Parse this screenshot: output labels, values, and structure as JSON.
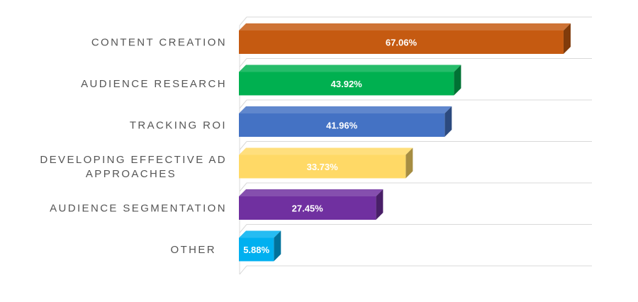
{
  "chart_data": {
    "type": "bar",
    "orientation": "horizontal",
    "three_d": true,
    "categories": [
      "CONTENT CREATION",
      "AUDIENCE RESEARCH",
      "TRACKING ROI",
      "DEVELOPING EFFECTIVE AD APPROACHES",
      "AUDIENCE SEGMENTATION",
      "OTHER"
    ],
    "category_label_lines": [
      [
        "CONTENT CREATION"
      ],
      [
        "AUDIENCE RESEARCH"
      ],
      [
        "TRACKING ROI"
      ],
      [
        "DEVELOPING EFFECTIVE AD",
        "APPROACHES"
      ],
      [
        "AUDIENCE SEGMENTATION"
      ],
      [
        "OTHER"
      ]
    ],
    "values": [
      67.06,
      43.92,
      41.96,
      33.73,
      27.45,
      5.88
    ],
    "data_labels": [
      "67.06%",
      "43.92%",
      "41.96%",
      "33.73%",
      "27.45%",
      "5.88%"
    ],
    "colors": [
      "#c55a11",
      "#00b050",
      "#4472c4",
      "#ffd966",
      "#7030a0",
      "#00b0f0"
    ],
    "xlim": [
      0,
      70
    ],
    "grid": true,
    "legend": "none",
    "title": "",
    "xlabel": "",
    "ylabel": ""
  }
}
